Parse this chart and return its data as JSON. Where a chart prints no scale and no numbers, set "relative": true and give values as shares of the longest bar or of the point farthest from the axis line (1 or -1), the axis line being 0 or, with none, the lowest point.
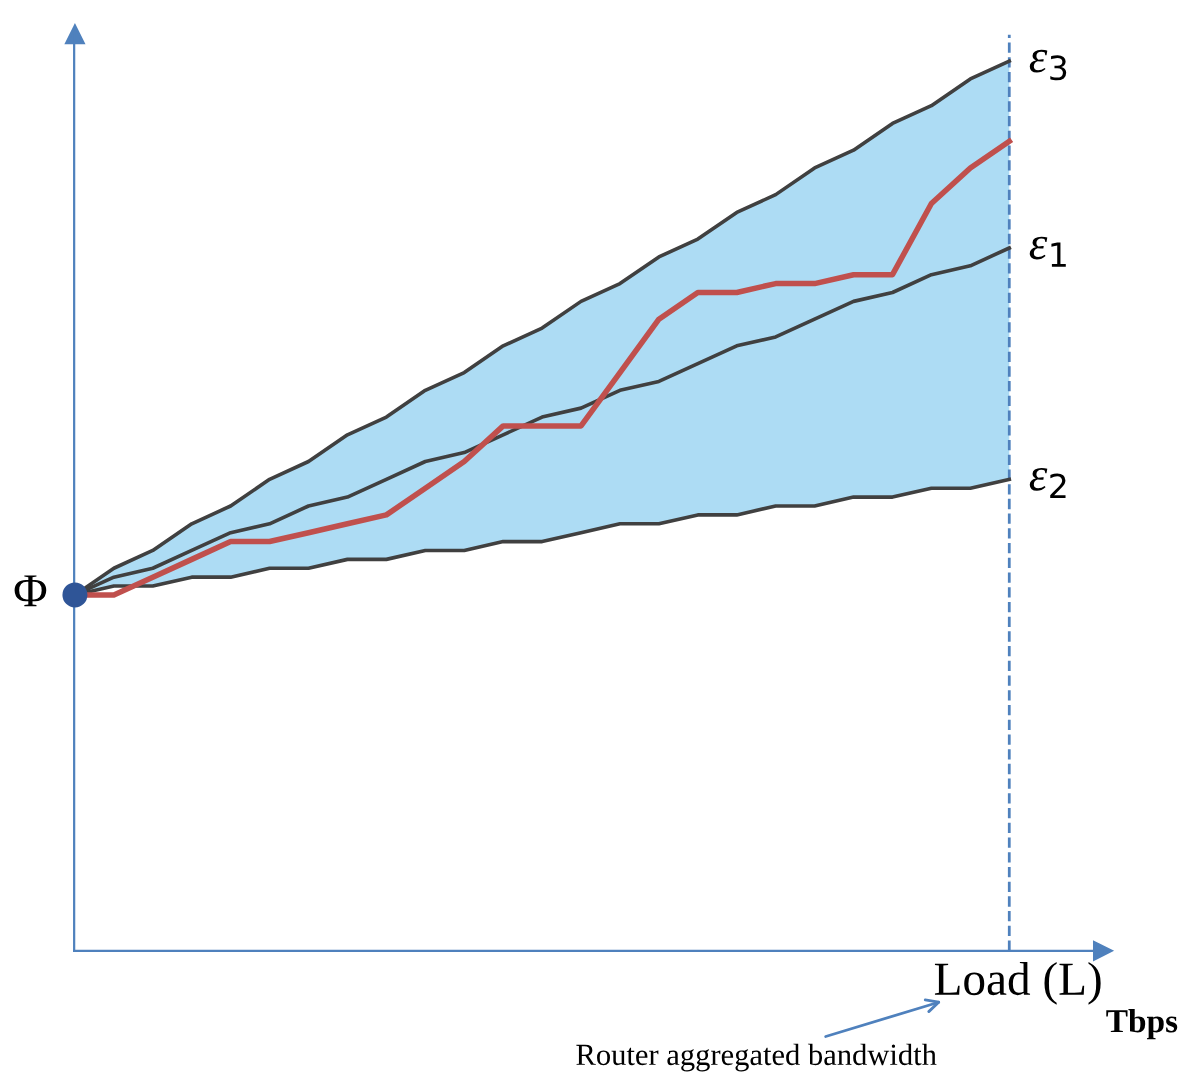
{
  "chart_data": {
    "type": "line",
    "relative": true,
    "xlabel": "Load (L)",
    "categories": [
      null,
      null,
      null,
      null,
      null,
      null,
      null,
      null,
      null,
      null,
      null,
      null,
      null,
      null,
      null,
      null,
      null,
      null,
      null,
      null,
      null,
      null,
      null,
      null,
      null
    ],
    "series": [
      {
        "name": "ε$_{3}$",
        "color": "#404040",
        "values": [
          0.4,
          0.43,
          0.45,
          0.48,
          0.5,
          0.53,
          0.55,
          0.58,
          0.6,
          0.63,
          0.65,
          0.68,
          0.7,
          0.73,
          0.75,
          0.78,
          0.8,
          0.83,
          0.85,
          0.88,
          0.9,
          0.93,
          0.95,
          0.98,
          1.0
        ]
      },
      {
        "name": "ε$_{1}$",
        "color": "#404040",
        "values": [
          0.4,
          0.42,
          0.43,
          0.45,
          0.47,
          0.48,
          0.5,
          0.51,
          0.53,
          0.55,
          0.56,
          0.58,
          0.6,
          0.61,
          0.63,
          0.64,
          0.66,
          0.68,
          0.69,
          0.71,
          0.73,
          0.74,
          0.76,
          0.77,
          0.79
        ],
        "lower": [
          0.4,
          0.41,
          0.41,
          0.42,
          0.42,
          0.43,
          0.43,
          0.44,
          0.44,
          0.45,
          0.45,
          0.46,
          0.46,
          0.47,
          0.48,
          0.48,
          0.49,
          0.49,
          0.5,
          0.5,
          0.51,
          0.51,
          0.52,
          0.52,
          0.53
        ],
        "upper": [
          0.4,
          0.43,
          0.45,
          0.48,
          0.5,
          0.53,
          0.55,
          0.58,
          0.6,
          0.63,
          0.65,
          0.68,
          0.7,
          0.73,
          0.75,
          0.78,
          0.8,
          0.83,
          0.85,
          0.88,
          0.9,
          0.93,
          0.95,
          0.98,
          1.0
        ]
      },
      {
        "name": "ε$_{2}$",
        "color": "#404040",
        "values": [
          0.4,
          0.41,
          0.41,
          0.42,
          0.42,
          0.43,
          0.43,
          0.44,
          0.44,
          0.45,
          0.45,
          0.46,
          0.46,
          0.47,
          0.48,
          0.48,
          0.49,
          0.49,
          0.5,
          0.5,
          0.51,
          0.51,
          0.52,
          0.52,
          0.53
        ]
      },
      {
        "color": "#c0504d",
        "values": [
          0.4,
          0.4,
          0.42,
          0.44,
          0.46,
          0.46,
          0.47,
          0.48,
          0.49,
          0.52,
          0.55,
          0.59,
          0.59,
          0.59,
          0.65,
          0.71,
          0.74,
          0.74,
          0.75,
          0.75,
          0.76,
          0.76,
          0.84,
          0.88,
          0.91
        ]
      }
    ],
    "annotations": [
      "Φ",
      "Tbps",
      "Router aggregated bandwidth"
    ],
    "legend": false
  }
}
